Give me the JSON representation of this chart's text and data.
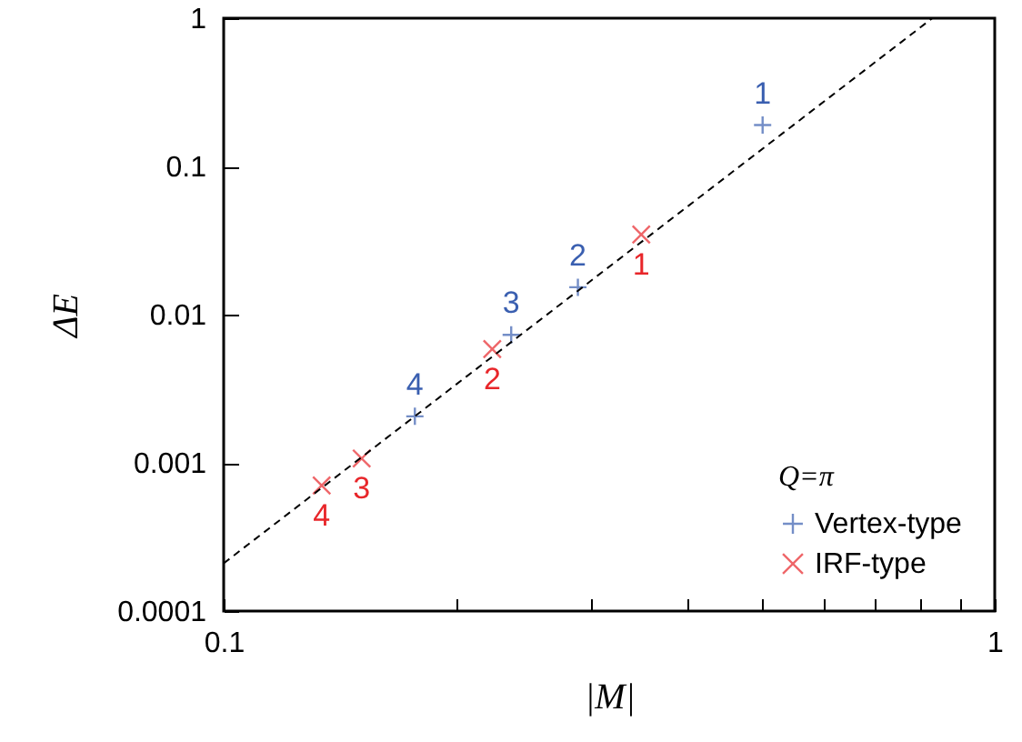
{
  "chart_data": {
    "type": "scatter",
    "xlabel": "|M|",
    "ylabel": "ΔE",
    "legend_title": "Q=π",
    "log": "xy",
    "legend": "bottom right",
    "grid": false,
    "xlim": [
      0.1,
      1
    ],
    "ylim": [
      0.0001,
      1
    ],
    "xticks": [
      0.1,
      {
        "value": 0.2,
        "label": null
      },
      {
        "value": 0.3,
        "label": null
      },
      {
        "value": 0.4,
        "label": null
      },
      {
        "value": 0.5,
        "label": null
      },
      {
        "value": 0.6,
        "label": null
      },
      {
        "value": 0.7,
        "label": null
      },
      {
        "value": 0.8,
        "label": null
      },
      {
        "value": 0.9,
        "label": null
      },
      1
    ],
    "yticks": [
      0.0001,
      0.001,
      0.01,
      0.1,
      1
    ],
    "series": [
      {
        "name": "Vertex-type",
        "color": "#3a5fb0",
        "marker": "plus",
        "x": [
          0.5,
          0.288,
          0.236,
          0.177
        ],
        "values": [
          0.19,
          0.0153,
          0.0073,
          0.00206
        ]
      },
      {
        "name": "IRF-type",
        "color": "#e8262a",
        "marker": "cross",
        "x": [
          0.348,
          0.223,
          0.151,
          0.134
        ],
        "values": [
          0.0347,
          0.00585,
          0.00107,
          0.000703
        ]
      },
      {
        "type": "line",
        "line_style": "dashed",
        "color": "#000000",
        "x": [
          0.1,
          0.83
        ],
        "values": [
          0.00021,
          1
        ]
      }
    ],
    "annotations": [
      {
        "text": "1",
        "x": 0.5,
        "y": 0.19
      },
      {
        "text": "2",
        "x": 0.288,
        "y": 0.0153
      },
      {
        "text": "3",
        "x": 0.236,
        "y": 0.0073
      },
      {
        "text": "4",
        "x": 0.177,
        "y": 0.00206
      },
      {
        "text": "1",
        "x": 0.348,
        "y": 0.0347
      },
      {
        "text": "2",
        "x": 0.223,
        "y": 0.00585
      },
      {
        "text": "3",
        "x": 0.151,
        "y": 0.00107
      },
      {
        "text": "4",
        "x": 0.134,
        "y": 0.000703
      }
    ]
  }
}
